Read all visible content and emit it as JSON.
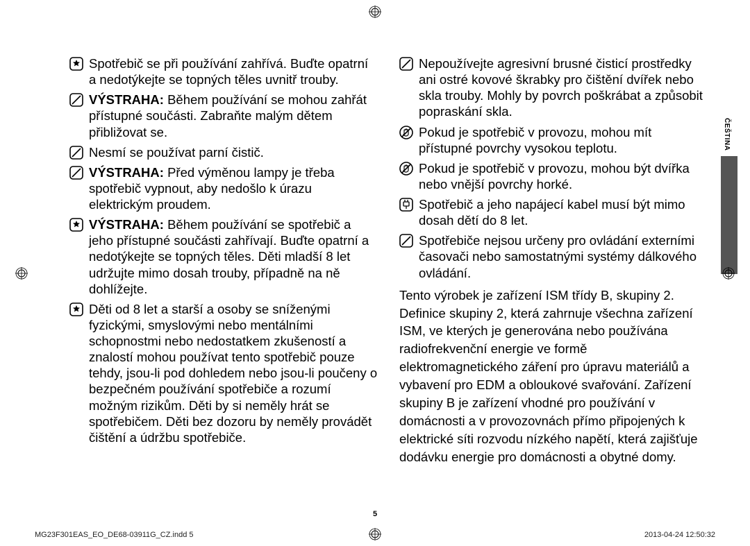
{
  "page": {
    "number": "5",
    "side_label": "ČEŠTINA",
    "footer_left": "MG23F301EAS_EO_DE68-03911G_CZ.indd   5",
    "footer_right": "2013-04-24   12:50:32"
  },
  "left_items": [
    {
      "icon": "star-box",
      "bold": "",
      "text": "Spotřebič se při používání zahřívá. Buďte opatrní a nedotýkejte se topných těles uvnitř trouby."
    },
    {
      "icon": "no-box",
      "bold": "VÝSTRAHA: ",
      "text": "Během používání se mohou zahřát přístupné součásti. Zabraňte malým dětem přibližovat se."
    },
    {
      "icon": "no-box",
      "bold": "",
      "text": "Nesmí se používat parní čistič."
    },
    {
      "icon": "no-box",
      "bold": "VÝSTRAHA: ",
      "text": "Před výměnou lampy je třeba spotřebič vypnout, aby nedošlo k úrazu elektrickým proudem."
    },
    {
      "icon": "star-box",
      "bold": "VÝSTRAHA: ",
      "text": "Během používání se spotřebič a jeho přístupné součásti zahřívají. Buďte opatrní a nedotýkejte se topných těles. Děti mladší 8 let udržujte mimo dosah trouby, případně na ně dohlížejte."
    },
    {
      "icon": "star-box",
      "bold": "",
      "text": "Děti od 8 let a starší a osoby se sníženými fyzickými, smyslovými nebo mentálními schopnostmi nebo nedostatkem zkušeností a znalostí mohou používat tento spotřebič pouze tehdy, jsou-li pod dohledem nebo jsou-li poučeny o bezpečném používání spotřebiče a rozumí možným rizikům. Děti by si neměly hrát se spotřebičem. Děti bez dozoru by neměly provádět čištění a údržbu spotřebiče."
    }
  ],
  "right_items": [
    {
      "icon": "no-box",
      "bold": "",
      "text": "Nepoužívejte agresivní brusné čisticí prostředky ani ostré kovové škrabky pro čištění dvířek nebo skla trouby. Mohly by povrch poškrábat a způsobit popraskání skla."
    },
    {
      "icon": "hand-no",
      "bold": "",
      "text": "Pokud je spotřebič v provozu, mohou mít přístupné povrchy vysokou teplotu."
    },
    {
      "icon": "hand-no",
      "bold": "",
      "text": "Pokud je spotřebič v provozu, mohou být dvířka nebo vnější povrchy horké."
    },
    {
      "icon": "plug-box",
      "bold": "",
      "text": "Spotřebič a jeho napájecí kabel musí být mimo dosah dětí do 8 let."
    },
    {
      "icon": "no-box",
      "bold": "",
      "text": "Spotřebiče nejsou určeny pro ovládání externími časovači nebo samostatnými systémy dálkového ovládání."
    }
  ],
  "right_paragraph": "Tento výrobek je zařízení ISM třídy B, skupiny 2. Definice skupiny 2, která zahrnuje všechna zařízení ISM, ve kterých je generována nebo používána radiofrekvenční energie ve formě elektromagnetického záření pro úpravu materiálů a vybavení pro EDM a obloukové svařování. Zařízení skupiny B je zařízení vhodné pro používání v domácnosti a v provozovnách přímo připojených k elektrické síti rozvodu nízkého napětí, která zajišťuje dodávku energie pro domácnosti a obytné domy."
}
